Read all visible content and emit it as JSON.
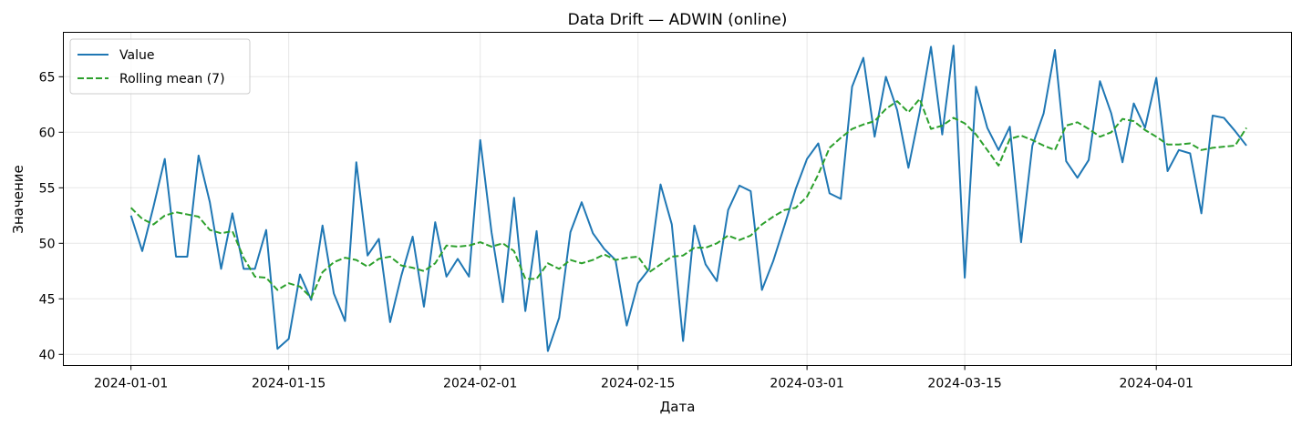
{
  "chart_data": {
    "type": "line",
    "title": "Data Drift — ADWIN (online)",
    "xlabel": "Дата",
    "ylabel": "Значение",
    "x_start": "2024-01-01",
    "xlim": [
      "2023-12-26",
      "2024-04-13"
    ],
    "ylim": [
      39,
      69
    ],
    "x_ticks": [
      "2024-01-01",
      "2024-01-15",
      "2024-02-01",
      "2024-02-15",
      "2024-03-01",
      "2024-03-15",
      "2024-04-01"
    ],
    "y_ticks": [
      40,
      45,
      50,
      55,
      60,
      65
    ],
    "grid": true,
    "legend_position": "top-left",
    "series": [
      {
        "name": "Value",
        "color": "#1f77b4",
        "style": "solid",
        "values": [
          52.5,
          49.3,
          53.3,
          57.6,
          48.8,
          48.8,
          57.9,
          53.7,
          47.7,
          52.7,
          47.7,
          47.7,
          51.2,
          40.5,
          41.4,
          47.2,
          44.9,
          51.6,
          45.5,
          43.0,
          57.3,
          48.9,
          50.4,
          42.9,
          47.1,
          50.6,
          44.3,
          51.9,
          47.0,
          48.6,
          47.0,
          59.3,
          51.0,
          44.7,
          54.1,
          43.9,
          51.1,
          40.3,
          43.3,
          51.0,
          53.7,
          50.9,
          49.5,
          48.5,
          42.6,
          46.4,
          47.7,
          55.3,
          51.7,
          41.2,
          51.6,
          48.1,
          46.6,
          53.0,
          55.2,
          54.7,
          45.8,
          48.4,
          51.6,
          54.9,
          57.6,
          59.0,
          54.5,
          54.0,
          64.1,
          66.7,
          59.6,
          65.0,
          62.0,
          56.8,
          61.8,
          67.7,
          59.8,
          67.8,
          46.9,
          64.1,
          60.4,
          58.4,
          60.5,
          50.1,
          58.8,
          61.7,
          67.4,
          57.4,
          55.9,
          57.5,
          64.6,
          61.7,
          57.3,
          62.6,
          60.4,
          64.9,
          56.5,
          58.4,
          58.1,
          52.7,
          61.5,
          61.3,
          60.1,
          58.8
        ]
      },
      {
        "name": "Rolling mean (7)",
        "color": "#2ca02c",
        "style": "dashed",
        "values": [
          53.2,
          52.2,
          51.7,
          52.5,
          52.8,
          52.6,
          52.4,
          51.2,
          50.9,
          51.1,
          48.7,
          47.0,
          46.9,
          45.8,
          46.4,
          46.1,
          45.1,
          47.4,
          48.3,
          48.7,
          48.5,
          47.9,
          48.6,
          48.8,
          48.0,
          47.8,
          47.5,
          48.2,
          49.8,
          49.7,
          49.8,
          50.1,
          49.7,
          50.0,
          49.3,
          46.8,
          46.8,
          48.2,
          47.7,
          48.5,
          48.2,
          48.5,
          49.0,
          48.5,
          48.7,
          48.8,
          47.4,
          48.1,
          48.8,
          48.9,
          49.6,
          49.6,
          50.0,
          50.7,
          50.3,
          50.7,
          51.7,
          52.4,
          53.0,
          53.2,
          54.2,
          56.2,
          58.6,
          59.5,
          60.3,
          60.7,
          61.0,
          62.1,
          62.8,
          61.8,
          63.0,
          60.3,
          60.6,
          61.3,
          60.8,
          59.8,
          58.4,
          57.0,
          59.4,
          59.7,
          59.3,
          58.8,
          58.4,
          60.6,
          60.9,
          60.3,
          59.6,
          60.0,
          61.2,
          61.0,
          60.2,
          59.6,
          58.9,
          58.9,
          59.0,
          58.4,
          58.6,
          58.7,
          58.8,
          60.4
        ]
      }
    ]
  }
}
